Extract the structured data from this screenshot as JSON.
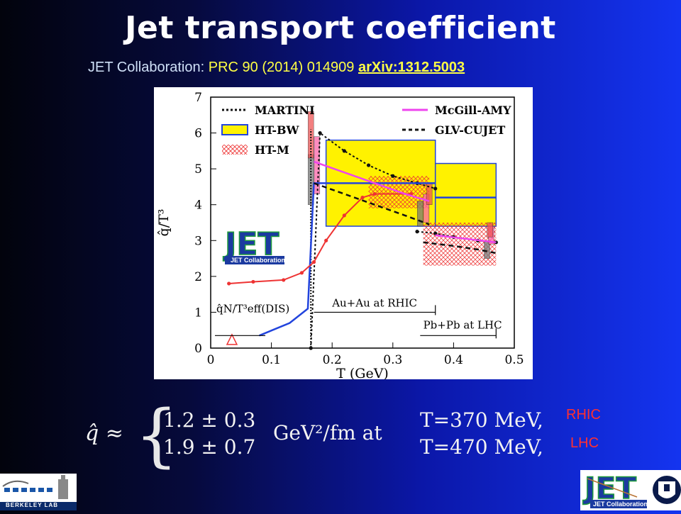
{
  "title": "Jet transport coefficient",
  "reference": {
    "collab": "JET Collaboration:",
    "journal": "PRC 90 (2014) 014909",
    "arxiv": "arXiv:1312.5003"
  },
  "chart_data": {
    "type": "line",
    "xlabel": "T (GeV)",
    "ylabel": "q̂/T³",
    "xlim": [
      0,
      0.5
    ],
    "ylim": [
      0,
      7
    ],
    "xticks": [
      "0",
      "0.1",
      "0.2",
      "0.3",
      "0.4",
      "0.5"
    ],
    "yticks": [
      "0",
      "1",
      "2",
      "3",
      "4",
      "5",
      "6",
      "7"
    ],
    "legend": [
      "MARTINI",
      "HT-BW",
      "HT-M",
      "McGill-AMY",
      "GLV-CUJET"
    ],
    "annotations": [
      "q̂N/T³eff(DIS)",
      "Au+Au at RHIC",
      "Pb+Pb at LHC"
    ],
    "series": [
      {
        "name": "MARTINI",
        "x": [
          0.165,
          0.18,
          0.22,
          0.26,
          0.3,
          0.34,
          0.37
        ],
        "y": [
          0,
          6.0,
          5.5,
          5.1,
          4.8,
          4.6,
          4.45
        ]
      },
      {
        "name": "MARTINI",
        "x": [
          0.34,
          0.37,
          0.4,
          0.44,
          0.47
        ],
        "y": [
          3.25,
          3.2,
          3.1,
          3.0,
          2.95
        ]
      },
      {
        "name": "HT-BW",
        "x": [
          0.08,
          0.13,
          0.16,
          0.17,
          0.2,
          0.37
        ],
        "y": [
          0.35,
          0.7,
          1.1,
          4.6,
          4.6,
          4.6
        ]
      },
      {
        "name": "HT-BW",
        "x": [
          0.37,
          0.47
        ],
        "y": [
          4.2,
          4.2
        ]
      },
      {
        "name": "HT-M",
        "x": [
          0.03,
          0.07,
          0.12,
          0.15,
          0.17,
          0.19,
          0.22,
          0.25,
          0.27,
          0.33
        ],
        "y": [
          1.8,
          1.85,
          1.9,
          2.1,
          2.4,
          3.0,
          3.7,
          4.2,
          4.3,
          4.3
        ]
      },
      {
        "name": "McGill-AMY",
        "x": [
          0.17,
          0.22,
          0.27,
          0.32,
          0.36
        ],
        "y": [
          5.2,
          4.9,
          4.6,
          4.3,
          4.1
        ]
      },
      {
        "name": "McGill-AMY",
        "x": [
          0.37,
          0.42,
          0.47
        ],
        "y": [
          3.15,
          3.05,
          2.95
        ]
      },
      {
        "name": "GLV-CUJET",
        "x": [
          0.17,
          0.22,
          0.27,
          0.32,
          0.36
        ],
        "y": [
          4.6,
          4.3,
          4.0,
          3.7,
          3.45
        ]
      },
      {
        "name": "GLV-CUJET",
        "x": [
          0.35,
          0.4,
          0.44,
          0.47
        ],
        "y": [
          2.95,
          2.85,
          2.75,
          2.65
        ]
      }
    ],
    "bands": [
      {
        "name": "HT-BW",
        "x": [
          0.19,
          0.37
        ],
        "y": [
          3.4,
          5.8
        ]
      },
      {
        "name": "HT-BW",
        "x": [
          0.37,
          0.47
        ],
        "y": [
          3.4,
          5.15
        ]
      },
      {
        "name": "HT-M",
        "x": [
          0.26,
          0.36
        ],
        "y": [
          3.9,
          4.8
        ]
      },
      {
        "name": "HT-M",
        "x": [
          0.35,
          0.47
        ],
        "y": [
          2.3,
          3.5
        ]
      }
    ]
  },
  "formula": {
    "lhs": "q̂ ≈",
    "val1": "1.2 ± 0.3",
    "val2": "1.9 ± 0.7",
    "unit": "GeV²/fm  at",
    "t1": "T=370 MeV,",
    "t2": "T=470 MeV,"
  },
  "tags": {
    "rhic": "RHIC",
    "lhc": "LHC"
  },
  "logos": {
    "plot": "JET Collaboration",
    "corner": "JET Collaboration",
    "lab": "BERKELEY LAB"
  },
  "colors": {
    "title": "#ffffff",
    "highlight": "#ffff44",
    "tag": "#ff3030",
    "bandYellow": "#fff200",
    "martini": "#111111",
    "htbw": "#2244dd",
    "htm": "#ee3333",
    "amy": "#ee44ee"
  }
}
